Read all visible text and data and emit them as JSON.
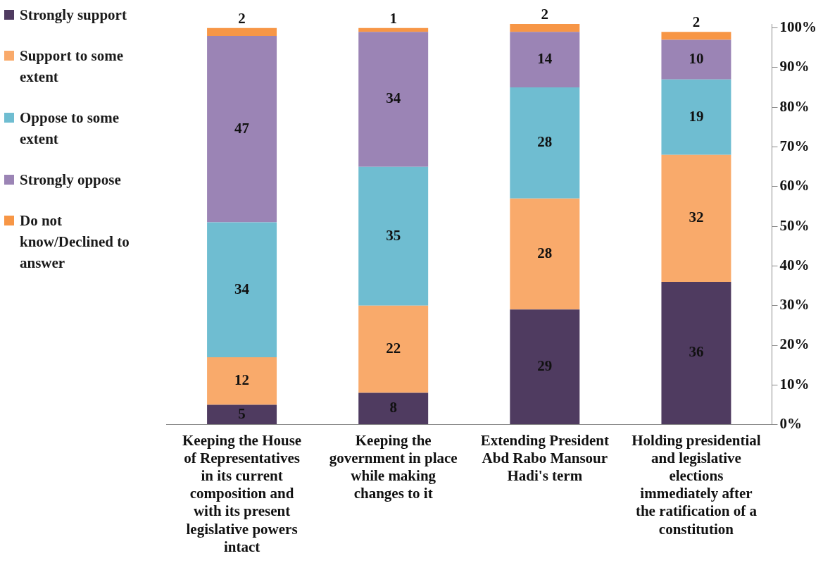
{
  "chart_data": {
    "type": "bar",
    "stacked": true,
    "data_labels": true,
    "grid": false,
    "legend": "left",
    "categories": [
      "Keeping the House of Representatives in its current composition and with its present legislative powers intact",
      "Keeping the government in place while making changes to it",
      "Extending President Abd Rabo Mansour Hadi's term",
      "Holding presidential and legislative elections immediately after the ratification of a constitution"
    ],
    "series": [
      {
        "name": "Strongly support",
        "color": "#4f3b60",
        "values": [
          5,
          8,
          29,
          36
        ]
      },
      {
        "name": "Support to some extent",
        "color": "#f9aa6b",
        "values": [
          12,
          22,
          28,
          32
        ]
      },
      {
        "name": "Oppose to some extent",
        "color": "#6fbdd1",
        "values": [
          34,
          35,
          28,
          19
        ]
      },
      {
        "name": "Strongly oppose",
        "color": "#9b84b5",
        "values": [
          47,
          34,
          14,
          10
        ]
      },
      {
        "name": "Do not know/Declined to answer",
        "color": "#f79646",
        "values": [
          2,
          1,
          2,
          2
        ]
      }
    ],
    "ylim": [
      0,
      101
    ],
    "yticks": [
      {
        "value": 0,
        "label": "0%"
      },
      {
        "value": 10,
        "label": "10%"
      },
      {
        "value": 20,
        "label": "20%"
      },
      {
        "value": 30,
        "label": "30%"
      },
      {
        "value": 40,
        "label": "40%"
      },
      {
        "value": 50,
        "label": "50%"
      },
      {
        "value": 60,
        "label": "60%"
      },
      {
        "value": 70,
        "label": "70%"
      },
      {
        "value": 80,
        "label": "80%"
      },
      {
        "value": 90,
        "label": "90%"
      },
      {
        "value": 100,
        "label": "100%"
      }
    ]
  }
}
